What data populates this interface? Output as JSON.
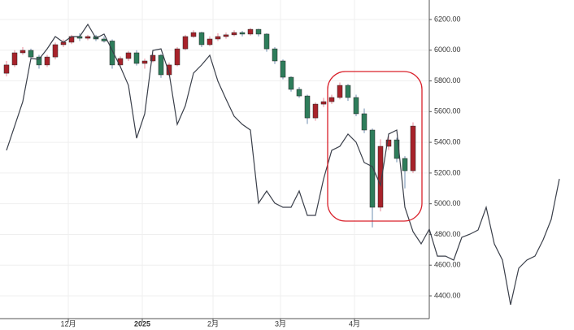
{
  "chart_data": {
    "type": "candlestick",
    "xlim": [
      -1.6,
      139.6
    ],
    "xticks": [
      {
        "value": 15.2,
        "label": "12月"
      },
      {
        "value": 33.4,
        "label": "2025",
        "bold": true
      },
      {
        "value": 50.8,
        "label": "2月"
      },
      {
        "value": 67.4,
        "label": "3月"
      },
      {
        "value": 85.6,
        "label": "4月"
      }
    ],
    "ylim": [
      4400,
      6200
    ],
    "yticks": [
      {
        "value": 4400,
        "label": "4400.00"
      },
      {
        "value": 4600,
        "label": "4600.00"
      },
      {
        "value": 4800,
        "label": "4800.00"
      },
      {
        "value": 5000,
        "label": "5000.00"
      },
      {
        "value": 5200,
        "label": "5200.00"
      },
      {
        "value": 5400,
        "label": "5400.00"
      },
      {
        "value": 5600,
        "label": "5600.00"
      },
      {
        "value": 5800,
        "label": "5800.00"
      },
      {
        "value": 6000,
        "label": "6000.00"
      },
      {
        "value": 6200,
        "label": "6200.00"
      }
    ],
    "grid": true,
    "up_color": "#a8222a",
    "down_color": "#2e7d5b",
    "up_wick": "#e88a9a",
    "down_wick": "#6f8fb0",
    "candles": {
      "x": [
        0,
        2,
        4,
        6,
        8,
        10,
        12,
        14,
        16,
        18,
        20,
        22,
        24,
        26,
        28,
        30,
        32,
        34,
        36,
        38,
        40,
        42,
        44,
        46,
        48,
        50,
        52,
        54,
        56,
        58,
        60,
        62,
        64,
        66,
        68,
        70,
        72,
        74,
        76,
        78,
        80,
        82,
        84,
        86,
        88,
        90,
        92,
        94,
        96,
        98,
        100
      ],
      "values": [
        [
          5850,
          5930,
          5830,
          5904
        ],
        [
          5904,
          6000,
          5890,
          5983
        ],
        [
          5983,
          6020,
          5970,
          5999
        ],
        [
          5999,
          6010,
          5940,
          5956
        ],
        [
          5956,
          5970,
          5880,
          5904
        ],
        [
          5904,
          5970,
          5890,
          5956
        ],
        [
          5956,
          6050,
          5940,
          6036
        ],
        [
          6036,
          6070,
          6020,
          6052
        ],
        [
          6052,
          6100,
          6040,
          6089
        ],
        [
          6089,
          6110,
          6060,
          6078
        ],
        [
          6078,
          6100,
          6065,
          6089
        ],
        [
          6089,
          6100,
          6060,
          6073
        ],
        [
          6073,
          6090,
          6050,
          6060
        ],
        [
          6060,
          6070,
          5880,
          5904
        ],
        [
          5904,
          5960,
          5890,
          5946
        ],
        [
          5946,
          5995,
          5930,
          5983
        ],
        [
          5983,
          6000,
          5900,
          5914
        ],
        [
          5914,
          5945,
          5880,
          5930
        ],
        [
          5930,
          5980,
          5920,
          5967
        ],
        [
          5967,
          5975,
          5820,
          5840
        ],
        [
          5840,
          5920,
          5830,
          5904
        ],
        [
          5904,
          6020,
          5895,
          6009
        ],
        [
          6009,
          6100,
          6000,
          6089
        ],
        [
          6089,
          6130,
          6080,
          6115
        ],
        [
          6115,
          6120,
          6020,
          6036
        ],
        [
          6036,
          6090,
          6025,
          6073
        ],
        [
          6073,
          6110,
          6060,
          6089
        ],
        [
          6089,
          6115,
          6075,
          6100
        ],
        [
          6100,
          6130,
          6090,
          6115
        ],
        [
          6115,
          6125,
          6090,
          6105
        ],
        [
          6105,
          6145,
          6095,
          6136
        ],
        [
          6136,
          6140,
          6090,
          6105
        ],
        [
          6105,
          6110,
          5990,
          6009
        ],
        [
          6009,
          6020,
          5910,
          5930
        ],
        [
          5930,
          5940,
          5810,
          5824
        ],
        [
          5824,
          5830,
          5730,
          5745
        ],
        [
          5745,
          5760,
          5690,
          5702
        ],
        [
          5702,
          5710,
          5520,
          5559
        ],
        [
          5559,
          5660,
          5540,
          5649
        ],
        [
          5649,
          5690,
          5630,
          5665
        ],
        [
          5665,
          5710,
          5650,
          5692
        ],
        [
          5692,
          5790,
          5680,
          5771
        ],
        [
          5771,
          5780,
          5670,
          5692
        ],
        [
          5692,
          5710,
          5570,
          5586
        ],
        [
          5586,
          5620,
          5460,
          5480
        ],
        [
          5480,
          5490,
          4846,
          4977
        ],
        [
          4977,
          5420,
          4950,
          5374
        ],
        [
          5374,
          5440,
          5350,
          5416
        ],
        [
          5416,
          5430,
          5270,
          5295
        ],
        [
          5295,
          5310,
          5100,
          5215
        ],
        [
          5215,
          5530,
          5200,
          5506
        ]
      ]
    },
    "line": {
      "color": "#3a3f4a",
      "x": [
        0,
        2,
        4,
        6,
        8,
        10,
        12,
        14,
        16,
        18,
        20,
        22,
        24,
        26,
        28,
        30,
        32,
        34,
        36,
        38,
        40,
        42,
        44,
        46,
        48,
        50,
        52,
        54,
        56,
        58,
        60,
        62,
        64,
        66,
        68,
        70,
        72,
        74,
        76,
        78,
        80,
        82,
        84,
        86,
        88,
        90,
        92,
        94,
        96,
        98,
        100,
        102,
        104,
        106,
        108,
        110,
        112,
        114,
        116,
        118,
        120,
        122,
        124,
        126,
        128,
        130,
        132,
        134,
        136
      ],
      "values": [
        5348,
        5506,
        5665,
        5946,
        5941,
        6009,
        6089,
        6052,
        6089,
        6089,
        6168,
        6078,
        6105,
        5999,
        5893,
        5771,
        5427,
        5586,
        5999,
        6009,
        5851,
        5517,
        5639,
        5851,
        5904,
        5967,
        5798,
        5681,
        5570,
        5517,
        5480,
        5004,
        5083,
        5004,
        4977,
        4977,
        5083,
        4924,
        4924,
        5162,
        5348,
        5374,
        5454,
        5401,
        5268,
        5242,
        5120,
        5454,
        5480,
        4977,
        4818,
        4739,
        4834,
        4659,
        4659,
        4633,
        4781,
        4802,
        4829,
        4977,
        4739,
        4633,
        4342,
        4580,
        4633,
        4659,
        4765,
        4898,
        5162
      ]
    }
  }
}
